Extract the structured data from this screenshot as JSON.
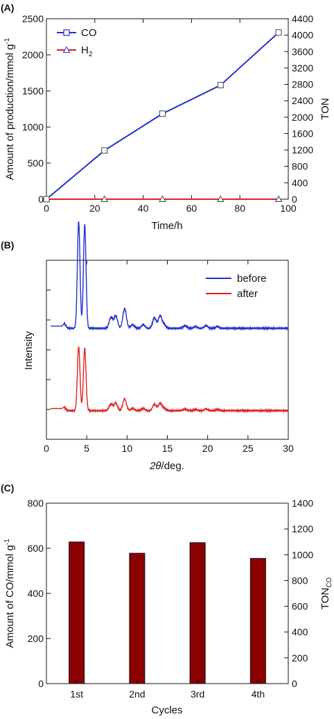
{
  "chart_data": [
    {
      "panel": "(A)",
      "type": "line",
      "xlabel": "Time/h",
      "ylabel": "Amount of production/mmol g",
      "ylabel_sup": "-1",
      "y2label": "TON",
      "xlim": [
        0,
        100
      ],
      "ylim": [
        0,
        2500
      ],
      "y2lim": [
        0,
        4400
      ],
      "xticks": [
        "0",
        "20",
        "40",
        "60",
        "80",
        "100"
      ],
      "yticks": [
        "0",
        "500",
        "1000",
        "1500",
        "2000",
        "2500"
      ],
      "y2ticks": [
        "0",
        "400",
        "800",
        "1200",
        "1600",
        "2000",
        "2400",
        "2800",
        "3200",
        "3600",
        "4000",
        "4400"
      ],
      "legend_position": "top-left",
      "series": [
        {
          "name": "CO",
          "name_sub": "",
          "marker": "square",
          "color": "#1f2fd0",
          "x": [
            0,
            24,
            48,
            72,
            96
          ],
          "y": [
            0,
            675,
            1185,
            1580,
            2310
          ]
        },
        {
          "name": "H",
          "name_sub": "2",
          "marker": "triangle",
          "color": "#e02020",
          "x": [
            0,
            24,
            48,
            72,
            96
          ],
          "y": [
            0,
            0,
            0,
            0,
            0
          ]
        }
      ]
    },
    {
      "panel": "(B)",
      "type": "line",
      "xlabel_italic": "2θ",
      "xlabel_rest": "/deg.",
      "ylabel": "Intensity",
      "xlim": [
        0,
        30
      ],
      "xticks": [
        "0",
        "5",
        "10",
        "15",
        "20",
        "25",
        "30"
      ],
      "legend_position": "top-right",
      "series": [
        {
          "name": "before",
          "color": "#1f2fd0",
          "baseline": 0.62
        },
        {
          "name": "after",
          "color": "#e02020",
          "baseline": 0.16
        }
      ],
      "peaks": [
        {
          "x": 2.3,
          "h": 0.02
        },
        {
          "x": 4.0,
          "h": 0.6
        },
        {
          "x": 4.75,
          "h": 0.58
        },
        {
          "x": 8.0,
          "h": 0.06
        },
        {
          "x": 8.6,
          "h": 0.07
        },
        {
          "x": 9.7,
          "h": 0.11
        },
        {
          "x": 10.7,
          "h": 0.02
        },
        {
          "x": 12.0,
          "h": 0.02
        },
        {
          "x": 13.4,
          "h": 0.06
        },
        {
          "x": 14.1,
          "h": 0.07
        },
        {
          "x": 14.6,
          "h": 0.02
        },
        {
          "x": 17.2,
          "h": 0.015
        },
        {
          "x": 18.5,
          "h": 0.01
        },
        {
          "x": 19.8,
          "h": 0.015
        },
        {
          "x": 21.2,
          "h": 0.01
        }
      ]
    },
    {
      "panel": "(C)",
      "type": "bar",
      "xlabel": "Cycles",
      "ylabel": "Amount of CO/mmol g",
      "ylabel_sup": "-1",
      "y2label": "TON",
      "y2label_sub": "CO",
      "ylim": [
        0,
        800
      ],
      "y2lim": [
        0,
        1400
      ],
      "yticks": [
        "0",
        "200",
        "400",
        "600",
        "800"
      ],
      "y2ticks": [
        "0",
        "200",
        "400",
        "600",
        "800",
        "1000",
        "1200",
        "1400"
      ],
      "bar_color": "#8b0000",
      "categories": [
        "1st",
        "2nd",
        "3rd",
        "4th"
      ],
      "values": [
        628,
        578,
        625,
        555
      ]
    }
  ]
}
